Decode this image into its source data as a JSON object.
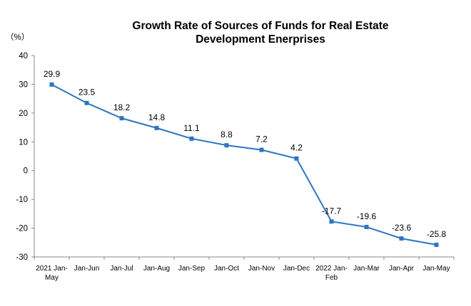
{
  "chart_data": {
    "type": "line",
    "title_line1": "Growth Rate of Sources of Funds for Real Estate",
    "title_line2": "Development Enerprises",
    "ylabel": "（%）",
    "ylim": [
      -30,
      40
    ],
    "yticks": [
      40,
      30,
      20,
      10,
      0,
      -10,
      -20,
      -30
    ],
    "grid": false,
    "categories": [
      [
        "2021 Jan-",
        "May"
      ],
      [
        "Jan-Jun"
      ],
      [
        "Jan-Jul"
      ],
      [
        "Jan-Aug"
      ],
      [
        "Jan-Sep"
      ],
      [
        "Jan-Oct"
      ],
      [
        "Jan-Nov"
      ],
      [
        "Jan-Dec"
      ],
      [
        "2022 Jan-",
        "Feb"
      ],
      [
        "Jan-Mar"
      ],
      [
        "Jan-Apr"
      ],
      [
        "Jan-May"
      ]
    ],
    "values": [
      29.9,
      23.5,
      18.2,
      14.8,
      11.1,
      8.8,
      7.2,
      4.2,
      -17.7,
      -19.6,
      -23.6,
      -25.8
    ],
    "data_labels": [
      "29.9",
      "23.5",
      "18.2",
      "14.8",
      "11.1",
      "8.8",
      "7.2",
      "4.2",
      "-17.7",
      "-19.6",
      "-23.6",
      "-25.8"
    ],
    "line_color": "#2E75C0"
  }
}
